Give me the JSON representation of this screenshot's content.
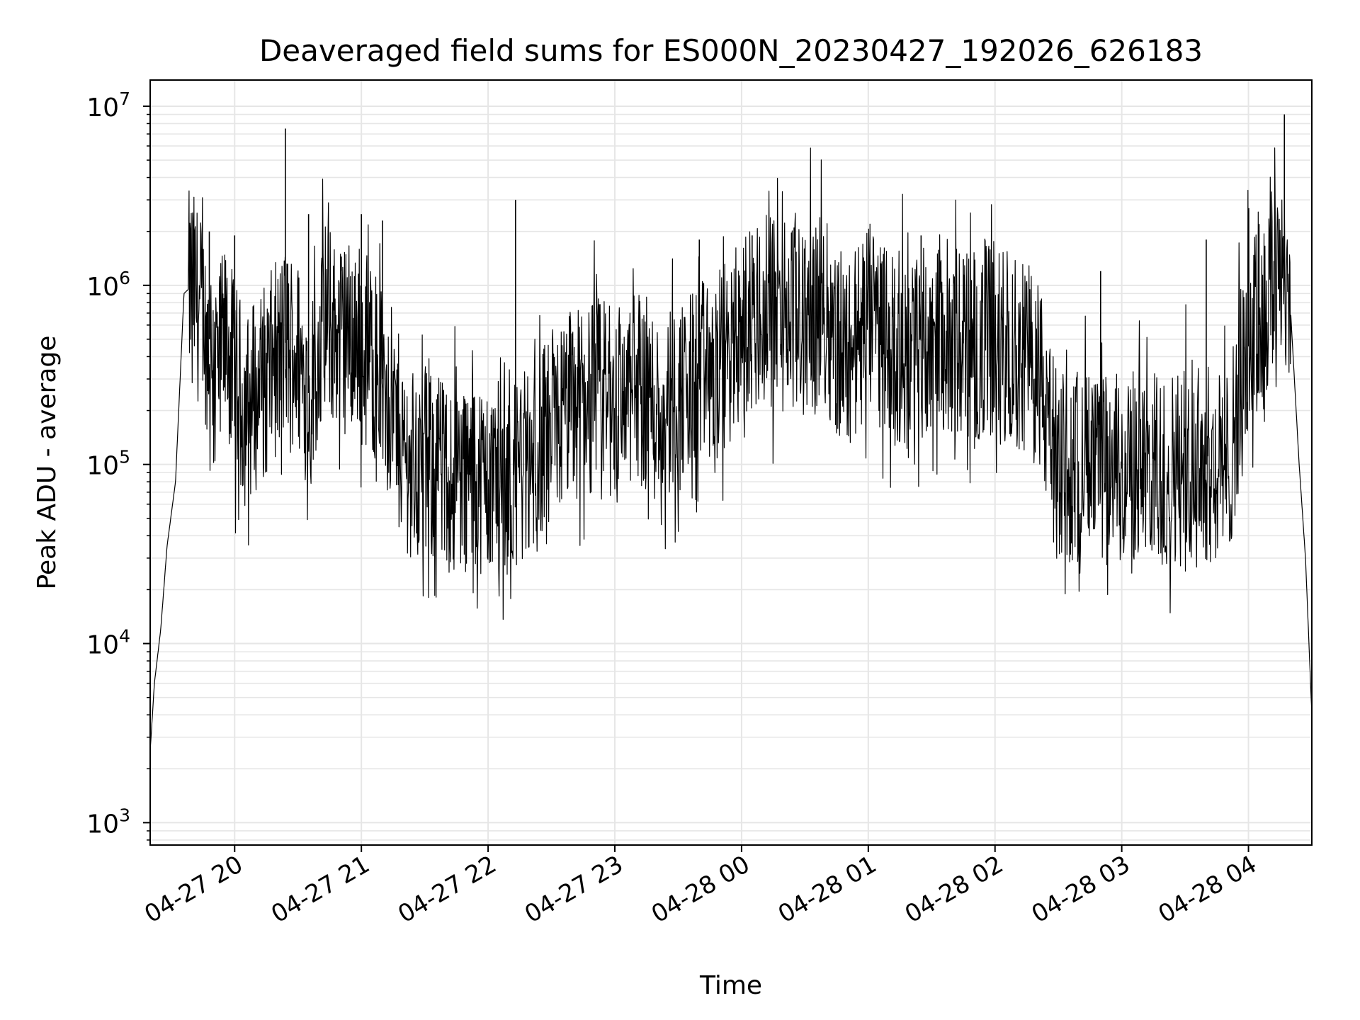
{
  "chart_data": {
    "type": "line",
    "title": "Deaveraged field sums for ES000N_20230427_192026_626183",
    "xlabel": "Time",
    "ylabel": "Peak ADU - average",
    "yscale": "log",
    "ylim": [
      750,
      14000000
    ],
    "xlim": [
      "2023-04-27 19:20",
      "2023-04-28 04:30"
    ],
    "grid": true,
    "line_color": "#000000",
    "grid_color": "#e6e6e6",
    "x_ticks": [
      {
        "t": "2023-04-27 20:00",
        "label": "04-27 20"
      },
      {
        "t": "2023-04-27 21:00",
        "label": "04-27 21"
      },
      {
        "t": "2023-04-27 22:00",
        "label": "04-27 22"
      },
      {
        "t": "2023-04-27 23:00",
        "label": "04-27 23"
      },
      {
        "t": "2023-04-28 00:00",
        "label": "04-28 00"
      },
      {
        "t": "2023-04-28 01:00",
        "label": "04-28 01"
      },
      {
        "t": "2023-04-28 02:00",
        "label": "04-28 02"
      },
      {
        "t": "2023-04-28 03:00",
        "label": "04-28 03"
      },
      {
        "t": "2023-04-28 04:00",
        "label": "04-28 04"
      }
    ],
    "y_ticks": [
      {
        "value": 1000,
        "base": "10",
        "exp": "3"
      },
      {
        "value": 10000,
        "base": "10",
        "exp": "4"
      },
      {
        "value": 100000,
        "base": "10",
        "exp": "5"
      },
      {
        "value": 1000000,
        "base": "10",
        "exp": "6"
      },
      {
        "value": 10000000,
        "base": "10",
        "exp": "7"
      }
    ],
    "series": [
      {
        "x": [
          "2023-04-27 19:20",
          "2023-04-27 19:22",
          "2023-04-27 19:25",
          "2023-04-27 19:28",
          "2023-04-27 19:32",
          "2023-04-27 19:36",
          "2023-04-27 19:40",
          "2023-04-27 19:44",
          "2023-04-27 19:48",
          "2023-04-27 19:52",
          "2023-04-27 19:56",
          "2023-04-27 20:00",
          "2023-04-27 20:05",
          "2023-04-27 20:10",
          "2023-04-27 20:15",
          "2023-04-27 20:20",
          "2023-04-27 20:25",
          "2023-04-27 20:30",
          "2023-04-27 20:35",
          "2023-04-27 20:40",
          "2023-04-27 20:45",
          "2023-04-27 20:50",
          "2023-04-27 20:55",
          "2023-04-27 21:00",
          "2023-04-27 21:05",
          "2023-04-27 21:10",
          "2023-04-27 21:15",
          "2023-04-27 21:20",
          "2023-04-27 21:25",
          "2023-04-27 21:30",
          "2023-04-27 21:35",
          "2023-04-27 21:40",
          "2023-04-27 21:45",
          "2023-04-27 21:50",
          "2023-04-27 21:55",
          "2023-04-27 22:00",
          "2023-04-27 22:10",
          "2023-04-27 22:20",
          "2023-04-27 22:30",
          "2023-04-27 22:40",
          "2023-04-27 22:50",
          "2023-04-27 23:00",
          "2023-04-27 23:10",
          "2023-04-27 23:20",
          "2023-04-27 23:30",
          "2023-04-27 23:40",
          "2023-04-27 23:50",
          "2023-04-28 00:00",
          "2023-04-28 00:10",
          "2023-04-28 00:20",
          "2023-04-28 00:30",
          "2023-04-28 00:40",
          "2023-04-28 00:50",
          "2023-04-28 01:00",
          "2023-04-28 01:10",
          "2023-04-28 01:20",
          "2023-04-28 01:30",
          "2023-04-28 01:40",
          "2023-04-28 01:50",
          "2023-04-28 02:00",
          "2023-04-28 02:10",
          "2023-04-28 02:20",
          "2023-04-28 02:30",
          "2023-04-28 02:40",
          "2023-04-28 02:50",
          "2023-04-28 03:00",
          "2023-04-28 03:10",
          "2023-04-28 03:20",
          "2023-04-28 03:30",
          "2023-04-28 03:40",
          "2023-04-28 03:50",
          "2023-04-28 04:00",
          "2023-04-28 04:05",
          "2023-04-28 04:10",
          "2023-04-28 04:15",
          "2023-04-28 04:20",
          "2023-04-28 04:24",
          "2023-04-28 04:27",
          "2023-04-28 04:30"
        ],
        "y": [
          2500,
          6000,
          12000,
          35000,
          80000,
          900000,
          1000000,
          700000,
          500000,
          350000,
          500000,
          300000,
          200000,
          250000,
          300000,
          400000,
          500000,
          400000,
          250000,
          500000,
          600000,
          500000,
          550000,
          500000,
          400000,
          300000,
          200000,
          120000,
          100000,
          90000,
          100000,
          80000,
          90000,
          85000,
          90000,
          80000,
          85000,
          100000,
          150000,
          220000,
          250000,
          220000,
          300000,
          200000,
          250000,
          300000,
          350000,
          600000,
          700000,
          700000,
          750000,
          700000,
          400000,
          650000,
          500000,
          400000,
          600000,
          500000,
          450000,
          550000,
          400000,
          350000,
          90000,
          100000,
          90000,
          95000,
          100000,
          90000,
          110000,
          100000,
          95000,
          500000,
          600000,
          900000,
          1500000,
          700000,
          100000,
          30000,
          4000
        ],
        "spikes": [
          {
            "t": "2023-04-27 19:48",
            "value": 2000000
          },
          {
            "t": "2023-04-27 20:00",
            "value": 1900000
          },
          {
            "t": "2023-04-27 20:24",
            "value": 7500000
          },
          {
            "t": "2023-04-27 20:35",
            "value": 2500000
          },
          {
            "t": "2023-04-27 21:00",
            "value": 2500000
          },
          {
            "t": "2023-04-27 21:10",
            "value": 2300000
          },
          {
            "t": "2023-04-27 22:13",
            "value": 3000000
          },
          {
            "t": "2023-04-27 23:40",
            "value": 1800000
          },
          {
            "t": "2023-04-28 00:05",
            "value": 1900000
          },
          {
            "t": "2023-04-28 01:25",
            "value": 1900000
          },
          {
            "t": "2023-04-28 01:45",
            "value": 1400000
          },
          {
            "t": "2023-04-28 02:50",
            "value": 1200000
          },
          {
            "t": "2023-04-28 03:40",
            "value": 1800000
          },
          {
            "t": "2023-04-28 04:05",
            "value": 2200000
          },
          {
            "t": "2023-04-28 04:17",
            "value": 9000000
          }
        ]
      }
    ]
  }
}
